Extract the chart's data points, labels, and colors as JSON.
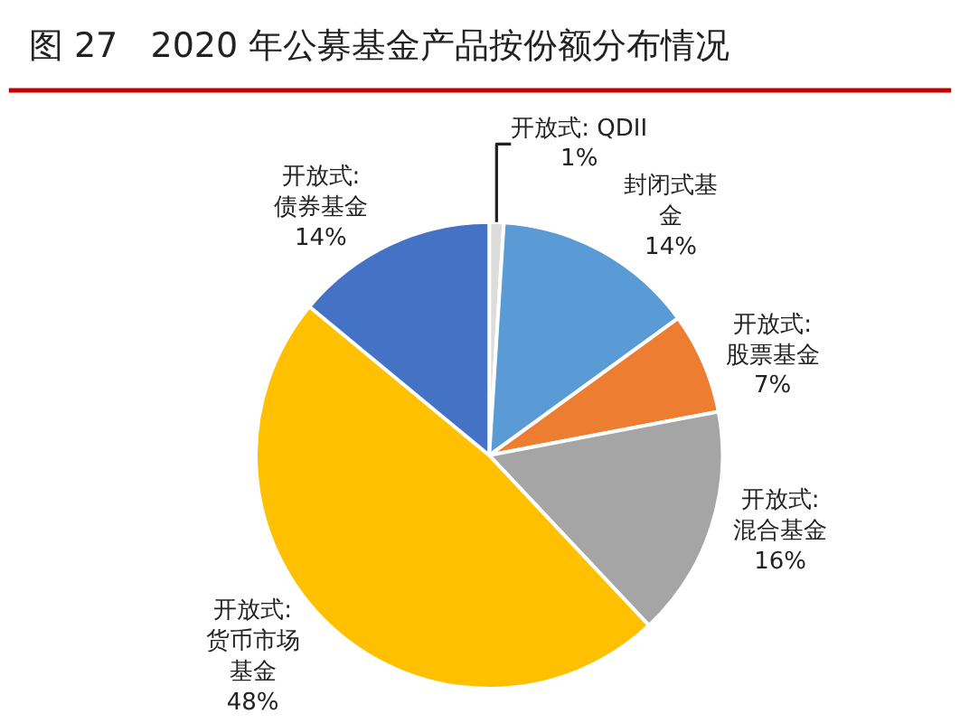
{
  "chart_data": {
    "type": "pie",
    "title": "图 27   2020 年公募基金产品按份额分布情况",
    "categories": [
      "开放式: QDII",
      "封闭式基金",
      "开放式:\n股票基金",
      "开放式:\n混合基金",
      "开放式:\n货币市场基金",
      "开放式:\n债券基金"
    ],
    "values": [
      1,
      14,
      7,
      16,
      48,
      14
    ],
    "value_labels": [
      "1%",
      "14%",
      "7%",
      "16%",
      "48%",
      "14%"
    ],
    "colors": [
      "#dcdcdc",
      "#5b9bd5",
      "#ed7d31",
      "#a5a5a5",
      "#ffc000",
      "#4472c4"
    ],
    "legend": false
  }
}
